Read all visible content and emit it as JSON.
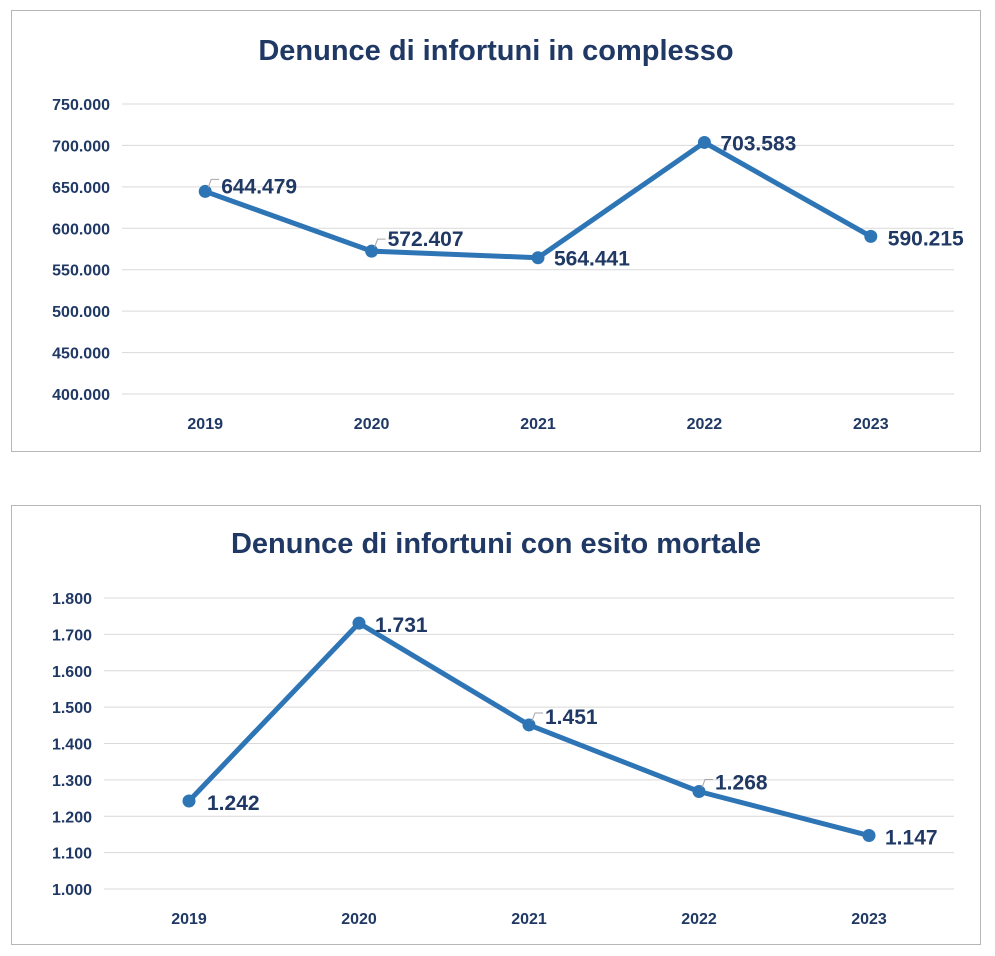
{
  "chart_data": [
    {
      "type": "line",
      "title": "Denunce di infortuni in complesso",
      "categories": [
        "2019",
        "2020",
        "2021",
        "2022",
        "2023"
      ],
      "series": [
        {
          "values": [
            644479,
            572407,
            564441,
            703583,
            590215
          ]
        }
      ],
      "data_labels": [
        "644.479",
        "572.407",
        "564.441",
        "703.583",
        "590.215"
      ],
      "ylim": [
        400000,
        750000
      ],
      "yticks": [
        400000,
        450000,
        500000,
        550000,
        600000,
        650000,
        700000,
        750000
      ],
      "ytick_labels": [
        "400.000",
        "450.000",
        "500.000",
        "550.000",
        "600.000",
        "650.000",
        "700.000",
        "750.000"
      ],
      "grid": true,
      "color": "#2e75b6"
    },
    {
      "type": "line",
      "title": "Denunce di infortuni con esito mortale",
      "categories": [
        "2019",
        "2020",
        "2021",
        "2022",
        "2023"
      ],
      "series": [
        {
          "values": [
            1242,
            1731,
            1451,
            1268,
            1147
          ]
        }
      ],
      "data_labels": [
        "1.242",
        "1.731",
        "1.451",
        "1.268",
        "1.147"
      ],
      "ylim": [
        1000,
        1800
      ],
      "yticks": [
        1000,
        1100,
        1200,
        1300,
        1400,
        1500,
        1600,
        1700,
        1800
      ],
      "ytick_labels": [
        "1.000",
        "1.100",
        "1.200",
        "1.300",
        "1.400",
        "1.500",
        "1.600",
        "1.700",
        "1.800"
      ],
      "grid": true,
      "color": "#2e75b6"
    }
  ]
}
